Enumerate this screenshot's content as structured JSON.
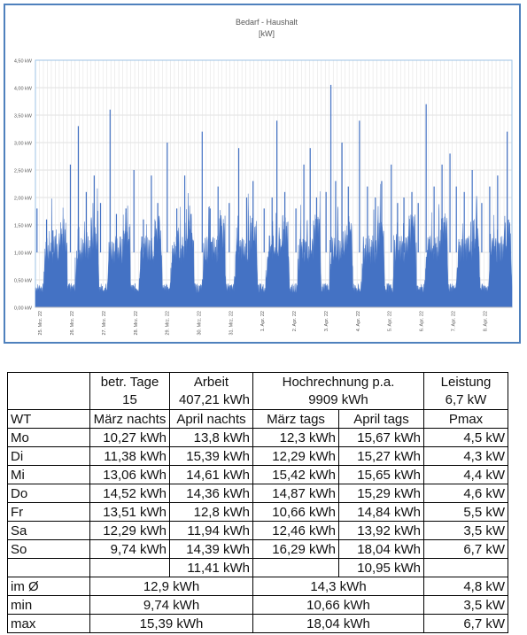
{
  "chart_data": {
    "type": "area",
    "title": "Bedarf - Haushalt",
    "subtitle": "[kW]",
    "ylim": [
      0,
      4.5
    ],
    "y_ticks": [
      "0,00 kW",
      "0,50 kW",
      "1,00 kW",
      "1,50 kW",
      "2,00 kW",
      "2,50 kW",
      "3,00 kW",
      "3,50 kW",
      "4,00 kW",
      "4,50 kW"
    ],
    "x_ticks": [
      "25. Mrz. 22",
      "26. Mrz. 22",
      "27. Mrz. 22",
      "28. Mrz. 22",
      "29. Mrz. 22",
      "30. Mrz. 22",
      "31. Mrz. 22",
      "1. Apr. 22",
      "2. Apr. 22",
      "3. Apr. 22",
      "4. Apr. 22",
      "5. Apr. 22",
      "6. Apr. 22",
      "7. Apr. 22",
      "8. Apr. 22"
    ],
    "grid": true,
    "series_color": "#4472c4",
    "x_days": 15,
    "daily_profile": {
      "night_base_kw": 0.35,
      "day_base_kw": 1.05,
      "evening_base_kw": 1.35
    },
    "peaks": [
      {
        "day": 0.05,
        "kw": 1.8
      },
      {
        "day": 0.35,
        "kw": 1.6
      },
      {
        "day": 0.55,
        "kw": 1.4
      },
      {
        "day": 1.1,
        "kw": 2.6
      },
      {
        "day": 1.35,
        "kw": 3.3
      },
      {
        "day": 1.6,
        "kw": 2.1
      },
      {
        "day": 1.85,
        "kw": 2.4
      },
      {
        "day": 2.05,
        "kw": 1.9
      },
      {
        "day": 2.35,
        "kw": 3.6
      },
      {
        "day": 2.55,
        "kw": 1.7
      },
      {
        "day": 2.85,
        "kw": 1.8
      },
      {
        "day": 3.1,
        "kw": 2.5
      },
      {
        "day": 3.4,
        "kw": 1.6
      },
      {
        "day": 3.65,
        "kw": 2.4
      },
      {
        "day": 3.85,
        "kw": 1.9
      },
      {
        "day": 4.15,
        "kw": 3.0
      },
      {
        "day": 4.45,
        "kw": 1.8
      },
      {
        "day": 4.7,
        "kw": 2.4
      },
      {
        "day": 4.9,
        "kw": 1.7
      },
      {
        "day": 5.25,
        "kw": 3.2
      },
      {
        "day": 5.5,
        "kw": 1.8
      },
      {
        "day": 5.75,
        "kw": 2.2
      },
      {
        "day": 6.1,
        "kw": 1.9
      },
      {
        "day": 6.4,
        "kw": 2.9
      },
      {
        "day": 6.65,
        "kw": 2.0
      },
      {
        "day": 6.85,
        "kw": 2.3
      },
      {
        "day": 7.2,
        "kw": 1.8
      },
      {
        "day": 7.45,
        "kw": 2.0
      },
      {
        "day": 7.6,
        "kw": 3.4
      },
      {
        "day": 7.85,
        "kw": 2.1
      },
      {
        "day": 8.2,
        "kw": 1.8
      },
      {
        "day": 8.45,
        "kw": 2.6
      },
      {
        "day": 8.65,
        "kw": 2.9
      },
      {
        "day": 8.85,
        "kw": 2.0
      },
      {
        "day": 9.15,
        "kw": 2.1
      },
      {
        "day": 9.3,
        "kw": 4.05
      },
      {
        "day": 9.45,
        "kw": 2.3
      },
      {
        "day": 9.65,
        "kw": 3.0
      },
      {
        "day": 9.85,
        "kw": 2.2
      },
      {
        "day": 10.2,
        "kw": 3.4
      },
      {
        "day": 10.45,
        "kw": 2.2
      },
      {
        "day": 10.7,
        "kw": 2.0
      },
      {
        "day": 10.9,
        "kw": 2.3
      },
      {
        "day": 11.2,
        "kw": 2.6
      },
      {
        "day": 11.4,
        "kw": 1.9
      },
      {
        "day": 11.6,
        "kw": 2.0
      },
      {
        "day": 11.85,
        "kw": 2.1
      },
      {
        "day": 12.05,
        "kw": 1.9
      },
      {
        "day": 12.3,
        "kw": 3.7
      },
      {
        "day": 12.55,
        "kw": 2.2
      },
      {
        "day": 12.8,
        "kw": 2.6
      },
      {
        "day": 13.05,
        "kw": 2.8
      },
      {
        "day": 13.25,
        "kw": 2.2
      },
      {
        "day": 13.5,
        "kw": 2.1
      },
      {
        "day": 13.75,
        "kw": 2.5
      },
      {
        "day": 14.05,
        "kw": 1.9
      },
      {
        "day": 14.3,
        "kw": 2.2
      },
      {
        "day": 14.55,
        "kw": 2.4
      },
      {
        "day": 14.85,
        "kw": 3.2
      }
    ]
  },
  "table": {
    "header1": {
      "betr_tage": "betr. Tage",
      "arbeit": "Arbeit",
      "hochrechnung": "Hochrechnung p.a.",
      "leistung": "Leistung"
    },
    "header2": {
      "tage": "15",
      "arbeit": "407,21 kWh",
      "hochrechnung": "9909 kWh",
      "leistung": "6,7 kW"
    },
    "header3": {
      "wt": "WT",
      "maerz_nachts": "März nachts",
      "april_nachts": "April nachts",
      "maerz_tags": "März tags",
      "april_tags": "April tags",
      "pmax": "Pmax"
    },
    "rows": [
      [
        "Mo",
        "10,27 kWh",
        "13,8 kWh",
        "12,3 kWh",
        "15,67 kWh",
        "4,5 kW"
      ],
      [
        "Di",
        "11,38 kWh",
        "15,39 kWh",
        "12,29 kWh",
        "15,27 kWh",
        "4,3 kW"
      ],
      [
        "Mi",
        "13,06 kWh",
        "14,61 kWh",
        "15,42 kWh",
        "15,65 kWh",
        "4,4 kW"
      ],
      [
        "Do",
        "14,52 kWh",
        "14,36 kWh",
        "14,87 kWh",
        "15,29 kWh",
        "4,6 kW"
      ],
      [
        "Fr",
        "13,51 kWh",
        "12,8 kWh",
        "10,66 kWh",
        "14,84 kWh",
        "5,5 kW"
      ],
      [
        "Sa",
        "12,29 kWh",
        "11,94 kWh",
        "12,46 kWh",
        "13,92 kWh",
        "3,5 kW"
      ],
      [
        "So",
        "9,74 kWh",
        "14,39 kWh",
        "16,29 kWh",
        "18,04 kWh",
        "6,7 kW"
      ],
      [
        "",
        "",
        "11,41 kWh",
        "",
        "10,95 kWh",
        ""
      ]
    ],
    "avg": {
      "label": "im Ø",
      "nachts": "12,9 kWh",
      "tags": "14,3 kWh",
      "pmax": "4,8 kW"
    },
    "min": {
      "label": "min",
      "nachts": "9,74 kWh",
      "tags": "10,66 kWh",
      "pmax": "3,5 kW"
    },
    "max": {
      "label": "max",
      "nachts": "15,39 kWh",
      "tags": "18,04 kWh",
      "pmax": "6,7 kW"
    }
  }
}
